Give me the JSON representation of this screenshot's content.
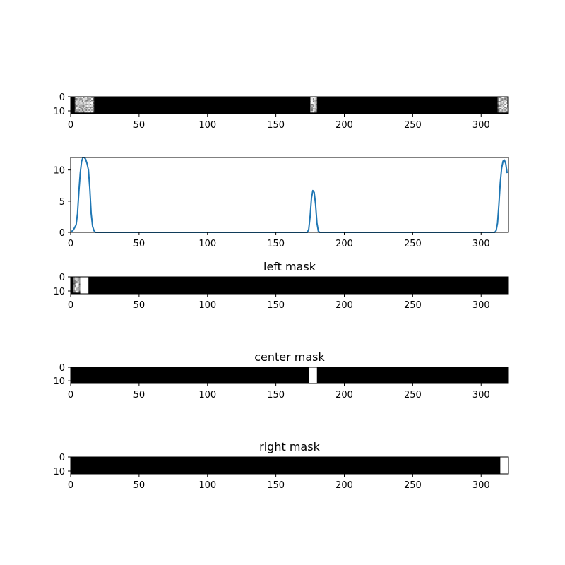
{
  "figure": {
    "background": "#ffffff"
  },
  "chart_data": [
    {
      "id": "raw",
      "type": "heatmap",
      "title": "",
      "colormap": "gray",
      "xlim": [
        0,
        320
      ],
      "ylim": [
        12,
        0
      ],
      "xticks": [
        0,
        50,
        100,
        150,
        200,
        250,
        300
      ],
      "yticks": [
        0,
        10
      ],
      "bright_regions": [
        {
          "x": [
            3,
            17
          ],
          "rows": [
            0,
            11
          ],
          "pattern": "speckled"
        },
        {
          "x": [
            175,
            180
          ],
          "rows": [
            0,
            11
          ],
          "pattern": "speckled"
        },
        {
          "x": [
            312,
            320
          ],
          "rows": [
            0,
            11
          ],
          "pattern": "speckled"
        }
      ]
    },
    {
      "id": "profile",
      "type": "line",
      "title": "",
      "xlim": [
        0,
        320
      ],
      "ylim": [
        0,
        12
      ],
      "xticks": [
        0,
        50,
        100,
        150,
        200,
        250,
        300
      ],
      "yticks": [
        0,
        5,
        10
      ],
      "grid": false,
      "series": [
        {
          "color": "#1f77b4",
          "x": [
            0,
            2,
            4,
            5,
            6,
            7,
            8,
            9,
            10,
            11,
            12,
            13,
            14,
            15,
            16,
            17,
            18,
            20,
            40,
            80,
            120,
            160,
            173,
            174,
            175,
            176,
            177,
            178,
            179,
            180,
            181,
            182,
            184,
            200,
            250,
            300,
            310,
            311,
            312,
            313,
            314,
            315,
            316,
            317,
            318,
            319
          ],
          "y": [
            0,
            0.4,
            1.2,
            3.0,
            6.5,
            9.5,
            11.4,
            12.0,
            12.0,
            11.7,
            11.0,
            10.0,
            7.0,
            3.0,
            1.0,
            0.3,
            0,
            0,
            0,
            0,
            0,
            0,
            0,
            0.5,
            2.5,
            5.5,
            6.7,
            6.4,
            4.5,
            1.5,
            0.2,
            0,
            0,
            0,
            0,
            0,
            0,
            0.3,
            1.5,
            4.5,
            8.0,
            10.3,
            11.4,
            11.6,
            11.0,
            9.5
          ]
        }
      ]
    },
    {
      "id": "left",
      "type": "heatmap",
      "title": "left mask",
      "colormap": "gray",
      "xlim": [
        0,
        320
      ],
      "ylim": [
        12,
        0
      ],
      "xticks": [
        0,
        50,
        100,
        150,
        200,
        250,
        300
      ],
      "yticks": [
        0,
        10
      ],
      "bright_regions": [
        {
          "x": [
            2,
            7
          ],
          "rows": [
            0,
            11
          ],
          "pattern": "speckled"
        },
        {
          "x": [
            7,
            13
          ],
          "rows": [
            0,
            12
          ],
          "pattern": "solid"
        }
      ]
    },
    {
      "id": "center",
      "type": "heatmap",
      "title": "center mask",
      "colormap": "gray",
      "xlim": [
        0,
        320
      ],
      "ylim": [
        12,
        0
      ],
      "xticks": [
        0,
        50,
        100,
        150,
        200,
        250,
        300
      ],
      "yticks": [
        0,
        10
      ],
      "bright_regions": [
        {
          "x": [
            174,
            180
          ],
          "rows": [
            0,
            12
          ],
          "pattern": "solid"
        }
      ]
    },
    {
      "id": "right",
      "type": "heatmap",
      "title": "right mask",
      "colormap": "gray",
      "xlim": [
        0,
        320
      ],
      "ylim": [
        12,
        0
      ],
      "xticks": [
        0,
        50,
        100,
        150,
        200,
        250,
        300
      ],
      "yticks": [
        0,
        10
      ],
      "bright_regions": [
        {
          "x": [
            314,
            320
          ],
          "rows": [
            0,
            12
          ],
          "pattern": "solid"
        }
      ]
    }
  ]
}
